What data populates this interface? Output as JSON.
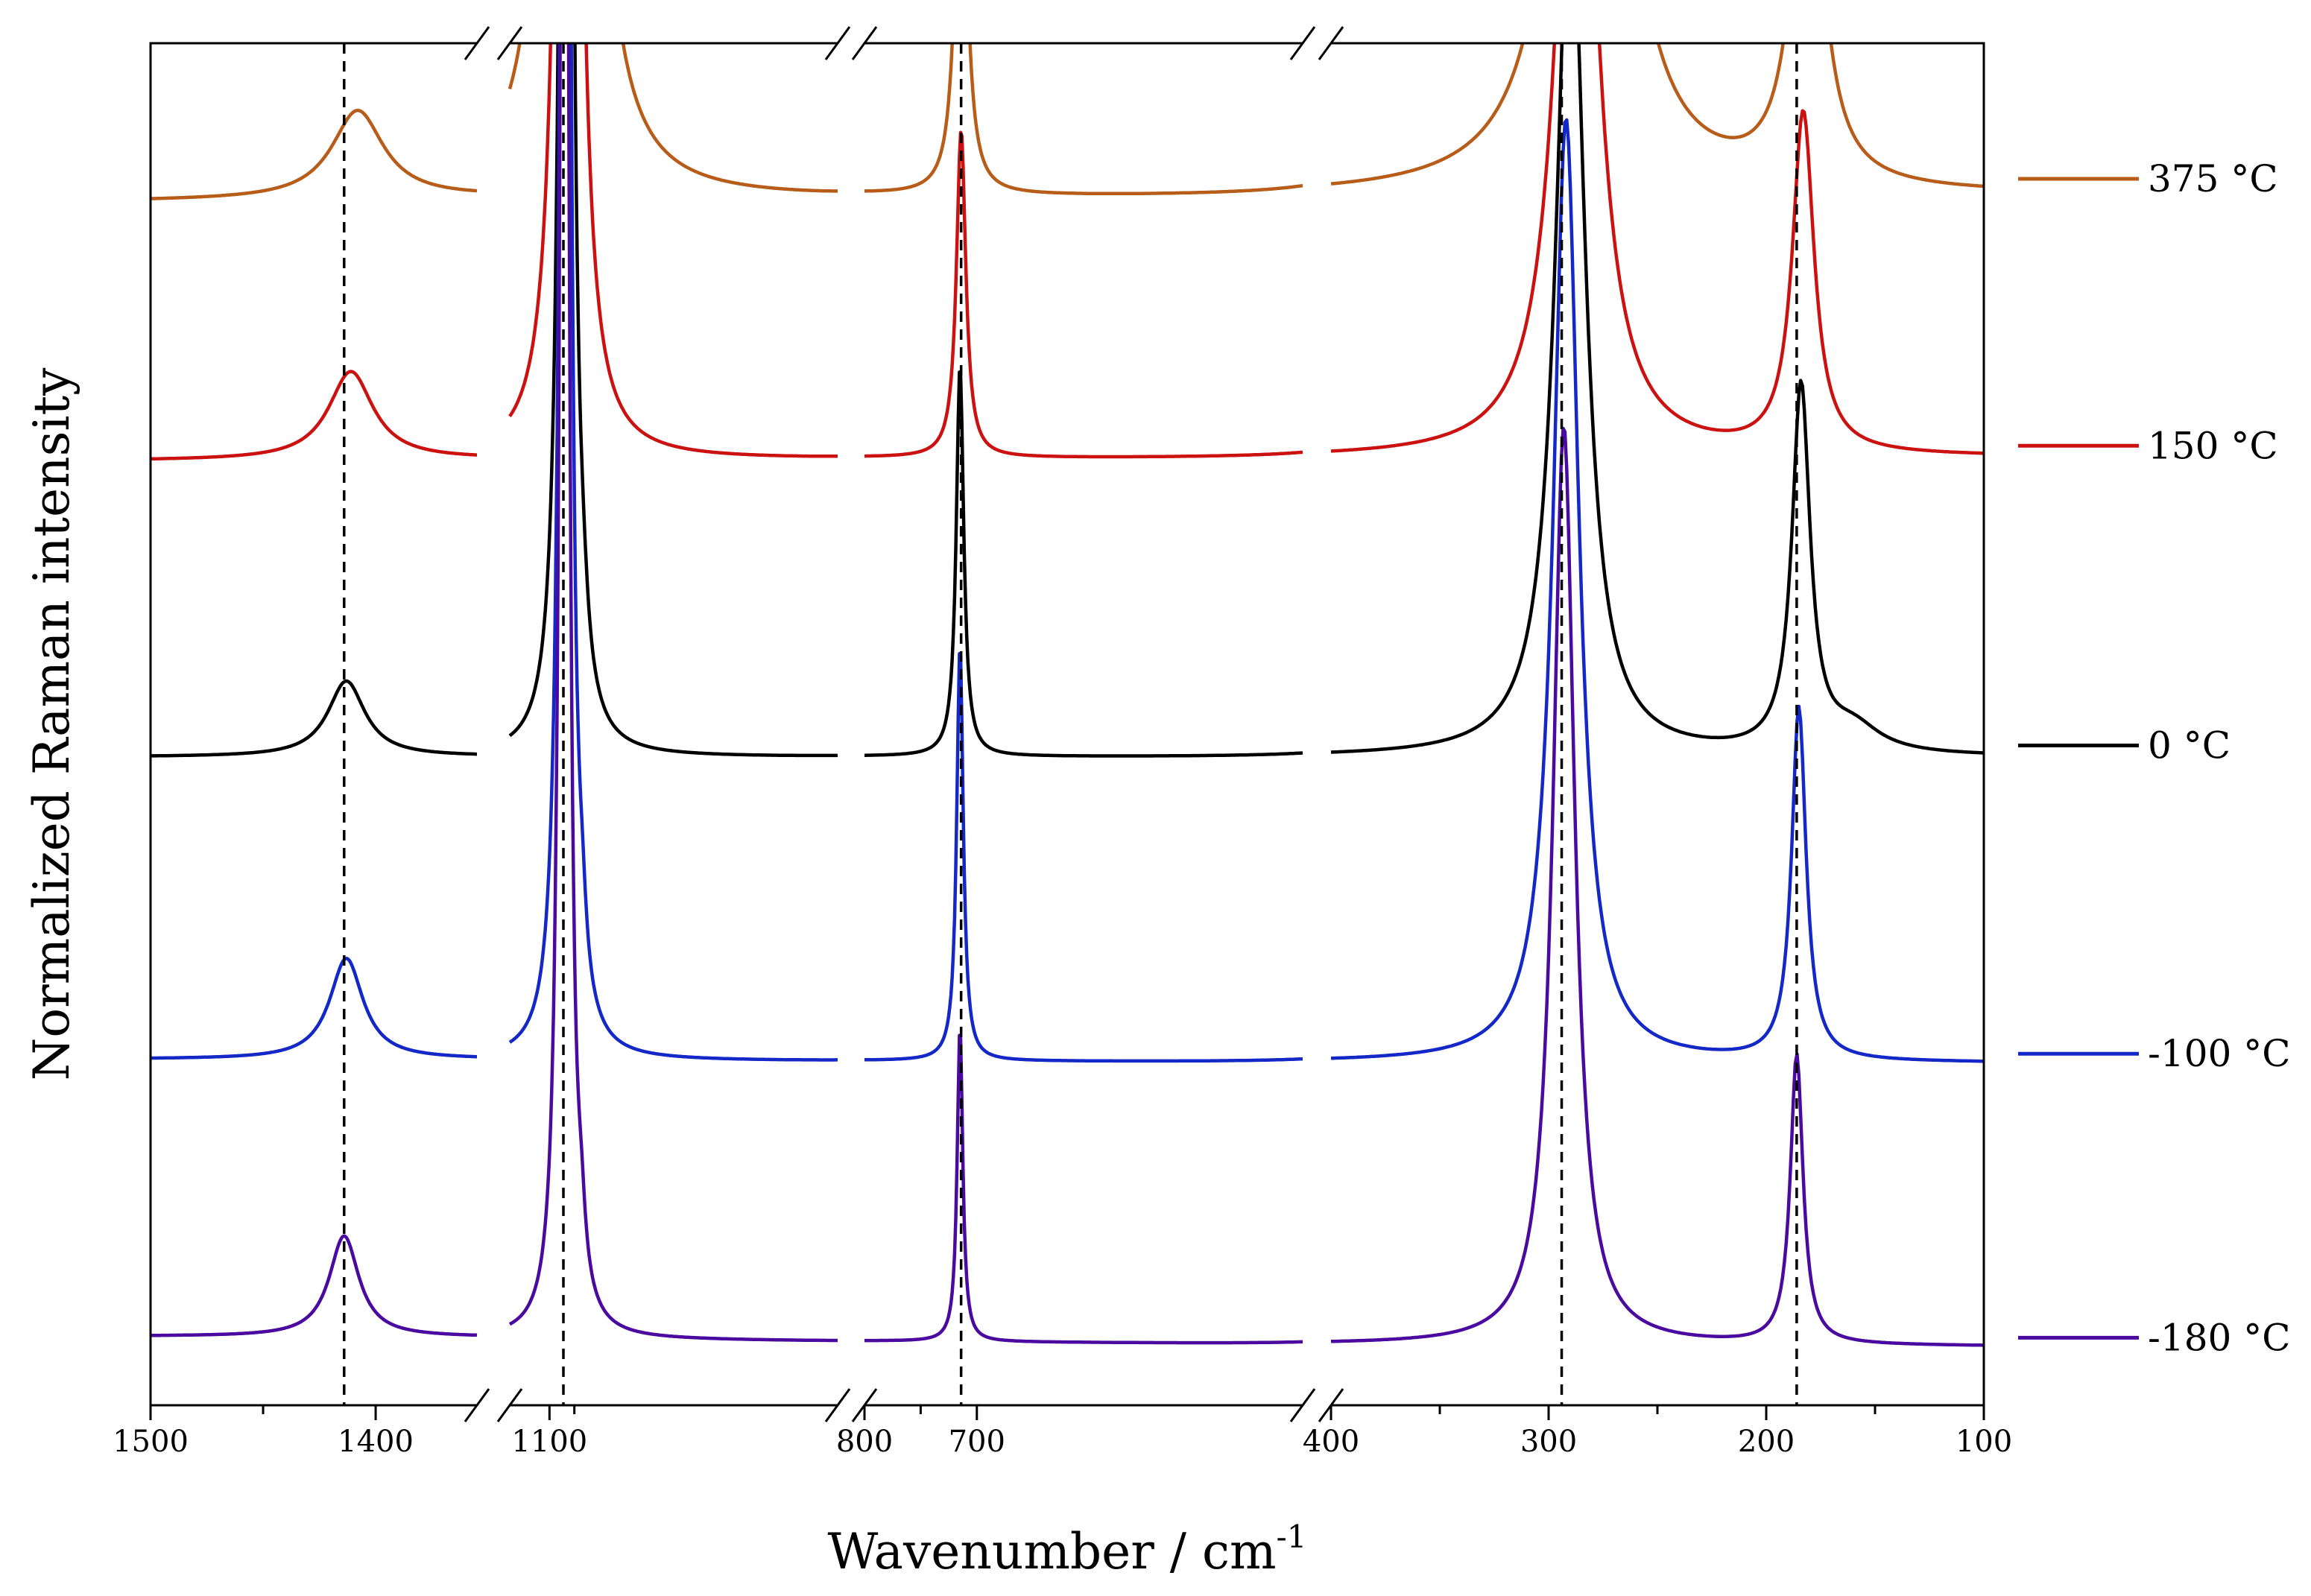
{
  "chart_data": {
    "type": "line",
    "xlabel": "Wavenumber / cm",
    "xlabel_sup": "-1",
    "ylabel": "Normalized Raman intensity",
    "x_reversed": true,
    "axis_breaks": true,
    "segments": [
      {
        "from": 1500,
        "to": 1355
      },
      {
        "from": 1140,
        "to": 810
      },
      {
        "from": 800,
        "to": 410
      },
      {
        "from": 400,
        "to": 100
      }
    ],
    "x_ticks": [
      {
        "value": 1500,
        "label": "1500"
      },
      {
        "value": 1400,
        "label": "1400"
      },
      {
        "value": 1100,
        "label": "1100"
      },
      {
        "value": 800,
        "label": "800"
      },
      {
        "value": 700,
        "label": "700"
      },
      {
        "value": 400,
        "label": "400"
      },
      {
        "value": 300,
        "label": "300"
      },
      {
        "value": 200,
        "label": "200"
      },
      {
        "value": 100,
        "label": "100"
      }
    ],
    "x_minor_ticks": [
      1450,
      1075,
      750,
      350,
      250,
      150
    ],
    "reference_lines": [
      1414,
      1086,
      714,
      294,
      186
    ],
    "legend_position": "right",
    "series": [
      {
        "name": "375 °C",
        "color": "#b85c1a",
        "offset": 0.88,
        "base_slope": 0.006,
        "peaks": [
          {
            "x": 1408,
            "h": 0.07,
            "w": 14
          },
          {
            "x": 1078,
            "h": 3.5,
            "w": 10
          },
          {
            "x": 714,
            "h": 0.33,
            "w": 6
          },
          {
            "x": 281,
            "h": 0.8,
            "w": 13
          },
          {
            "x": 181,
            "h": 0.31,
            "w": 8
          }
        ]
      },
      {
        "name": "150 °C",
        "color": "#cc1111",
        "offset": 0.675,
        "base_slope": 0.003,
        "peaks": [
          {
            "x": 1411,
            "h": 0.07,
            "w": 12
          },
          {
            "x": 1081,
            "h": 2.5,
            "w": 7
          },
          {
            "x": 714,
            "h": 0.26,
            "w": 5
          },
          {
            "x": 287,
            "h": 0.68,
            "w": 10
          },
          {
            "x": 183,
            "h": 0.27,
            "w": 6
          }
        ]
      },
      {
        "name": "0 °C",
        "color": "#000000",
        "offset": 0.44,
        "base_slope": 0.0,
        "peaks": [
          {
            "x": 1413,
            "h": 0.06,
            "w": 10
          },
          {
            "x": 1083,
            "h": 2.2,
            "w": 5
          },
          {
            "x": 1066,
            "h": 0.03,
            "w": 6
          },
          {
            "x": 715,
            "h": 0.31,
            "w": 4
          },
          {
            "x": 290,
            "h": 0.7,
            "w": 8
          },
          {
            "x": 184,
            "h": 0.29,
            "w": 5
          },
          {
            "x": 160,
            "h": 0.02,
            "w": 15
          }
        ]
      },
      {
        "name": "-100 °C",
        "color": "#1428c8",
        "offset": 0.2,
        "base_slope": -0.003,
        "peaks": [
          {
            "x": 1413,
            "h": 0.08,
            "w": 9
          },
          {
            "x": 1084,
            "h": 2.2,
            "w": 4.5
          },
          {
            "x": 1067,
            "h": 0.04,
            "w": 5
          },
          {
            "x": 715,
            "h": 0.33,
            "w": 3.5
          },
          {
            "x": 292,
            "h": 0.75,
            "w": 7
          },
          {
            "x": 185,
            "h": 0.28,
            "w": 4
          }
        ]
      },
      {
        "name": "-180 °C",
        "color": "#4a0aa0",
        "offset": -0.02,
        "base_slope": -0.008,
        "peaks": [
          {
            "x": 1414,
            "h": 0.08,
            "w": 8
          },
          {
            "x": 1085,
            "h": 2.2,
            "w": 4
          },
          {
            "x": 1068,
            "h": 0.04,
            "w": 5
          },
          {
            "x": 715,
            "h": 0.25,
            "w": 3
          },
          {
            "x": 293,
            "h": 0.73,
            "w": 6
          },
          {
            "x": 186,
            "h": 0.23,
            "w": 3.5
          }
        ]
      }
    ]
  }
}
